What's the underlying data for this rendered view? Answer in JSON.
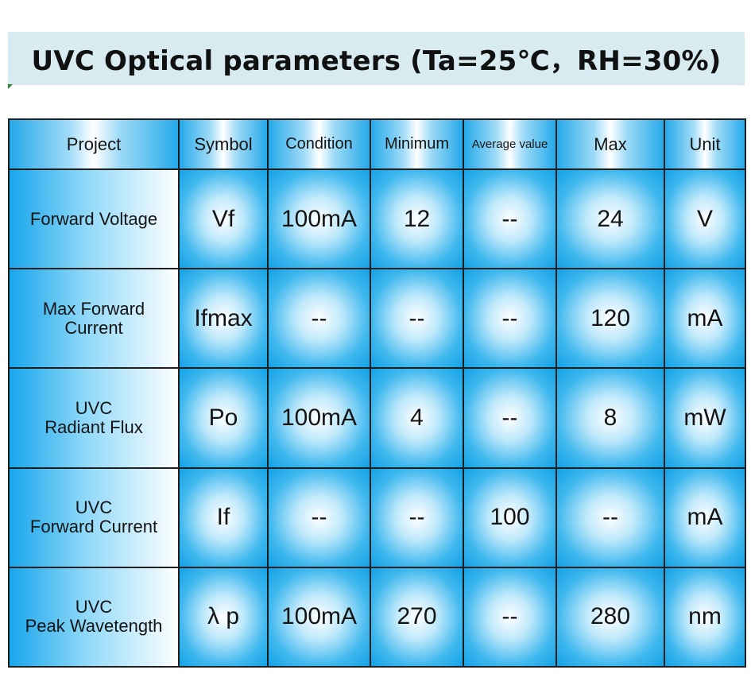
{
  "title": "UVC Optical parameters (Ta=25℃，RH=30%)",
  "columns": [
    "Project",
    "Symbol",
    "Condition",
    "Minimum",
    "Average value",
    "Max",
    "Unit"
  ],
  "rows": [
    {
      "project": [
        "Forward Voltage"
      ],
      "symbol": "Vf",
      "condition": "100mA",
      "minimum": "12",
      "average": "--",
      "max": "24",
      "unit": "V"
    },
    {
      "project": [
        "Max Forward",
        "Current"
      ],
      "symbol": "Ifmax",
      "condition": "--",
      "minimum": "--",
      "average": "--",
      "max": "120",
      "unit": "mA"
    },
    {
      "project": [
        "UVC",
        "Radiant Flux"
      ],
      "symbol": "Po",
      "condition": "100mA",
      "minimum": "4",
      "average": "--",
      "max": "8",
      "unit": "mW"
    },
    {
      "project": [
        "UVC",
        "Forward Current"
      ],
      "symbol": "If",
      "condition": "--",
      "minimum": "--",
      "average": "100",
      "max": "--",
      "unit": "mA"
    },
    {
      "project": [
        "UVC",
        "Peak Wavetength"
      ],
      "symbol": "λ p",
      "condition": "100mA",
      "minimum": "270",
      "average": "--",
      "max": "280",
      "unit": "nm"
    }
  ]
}
